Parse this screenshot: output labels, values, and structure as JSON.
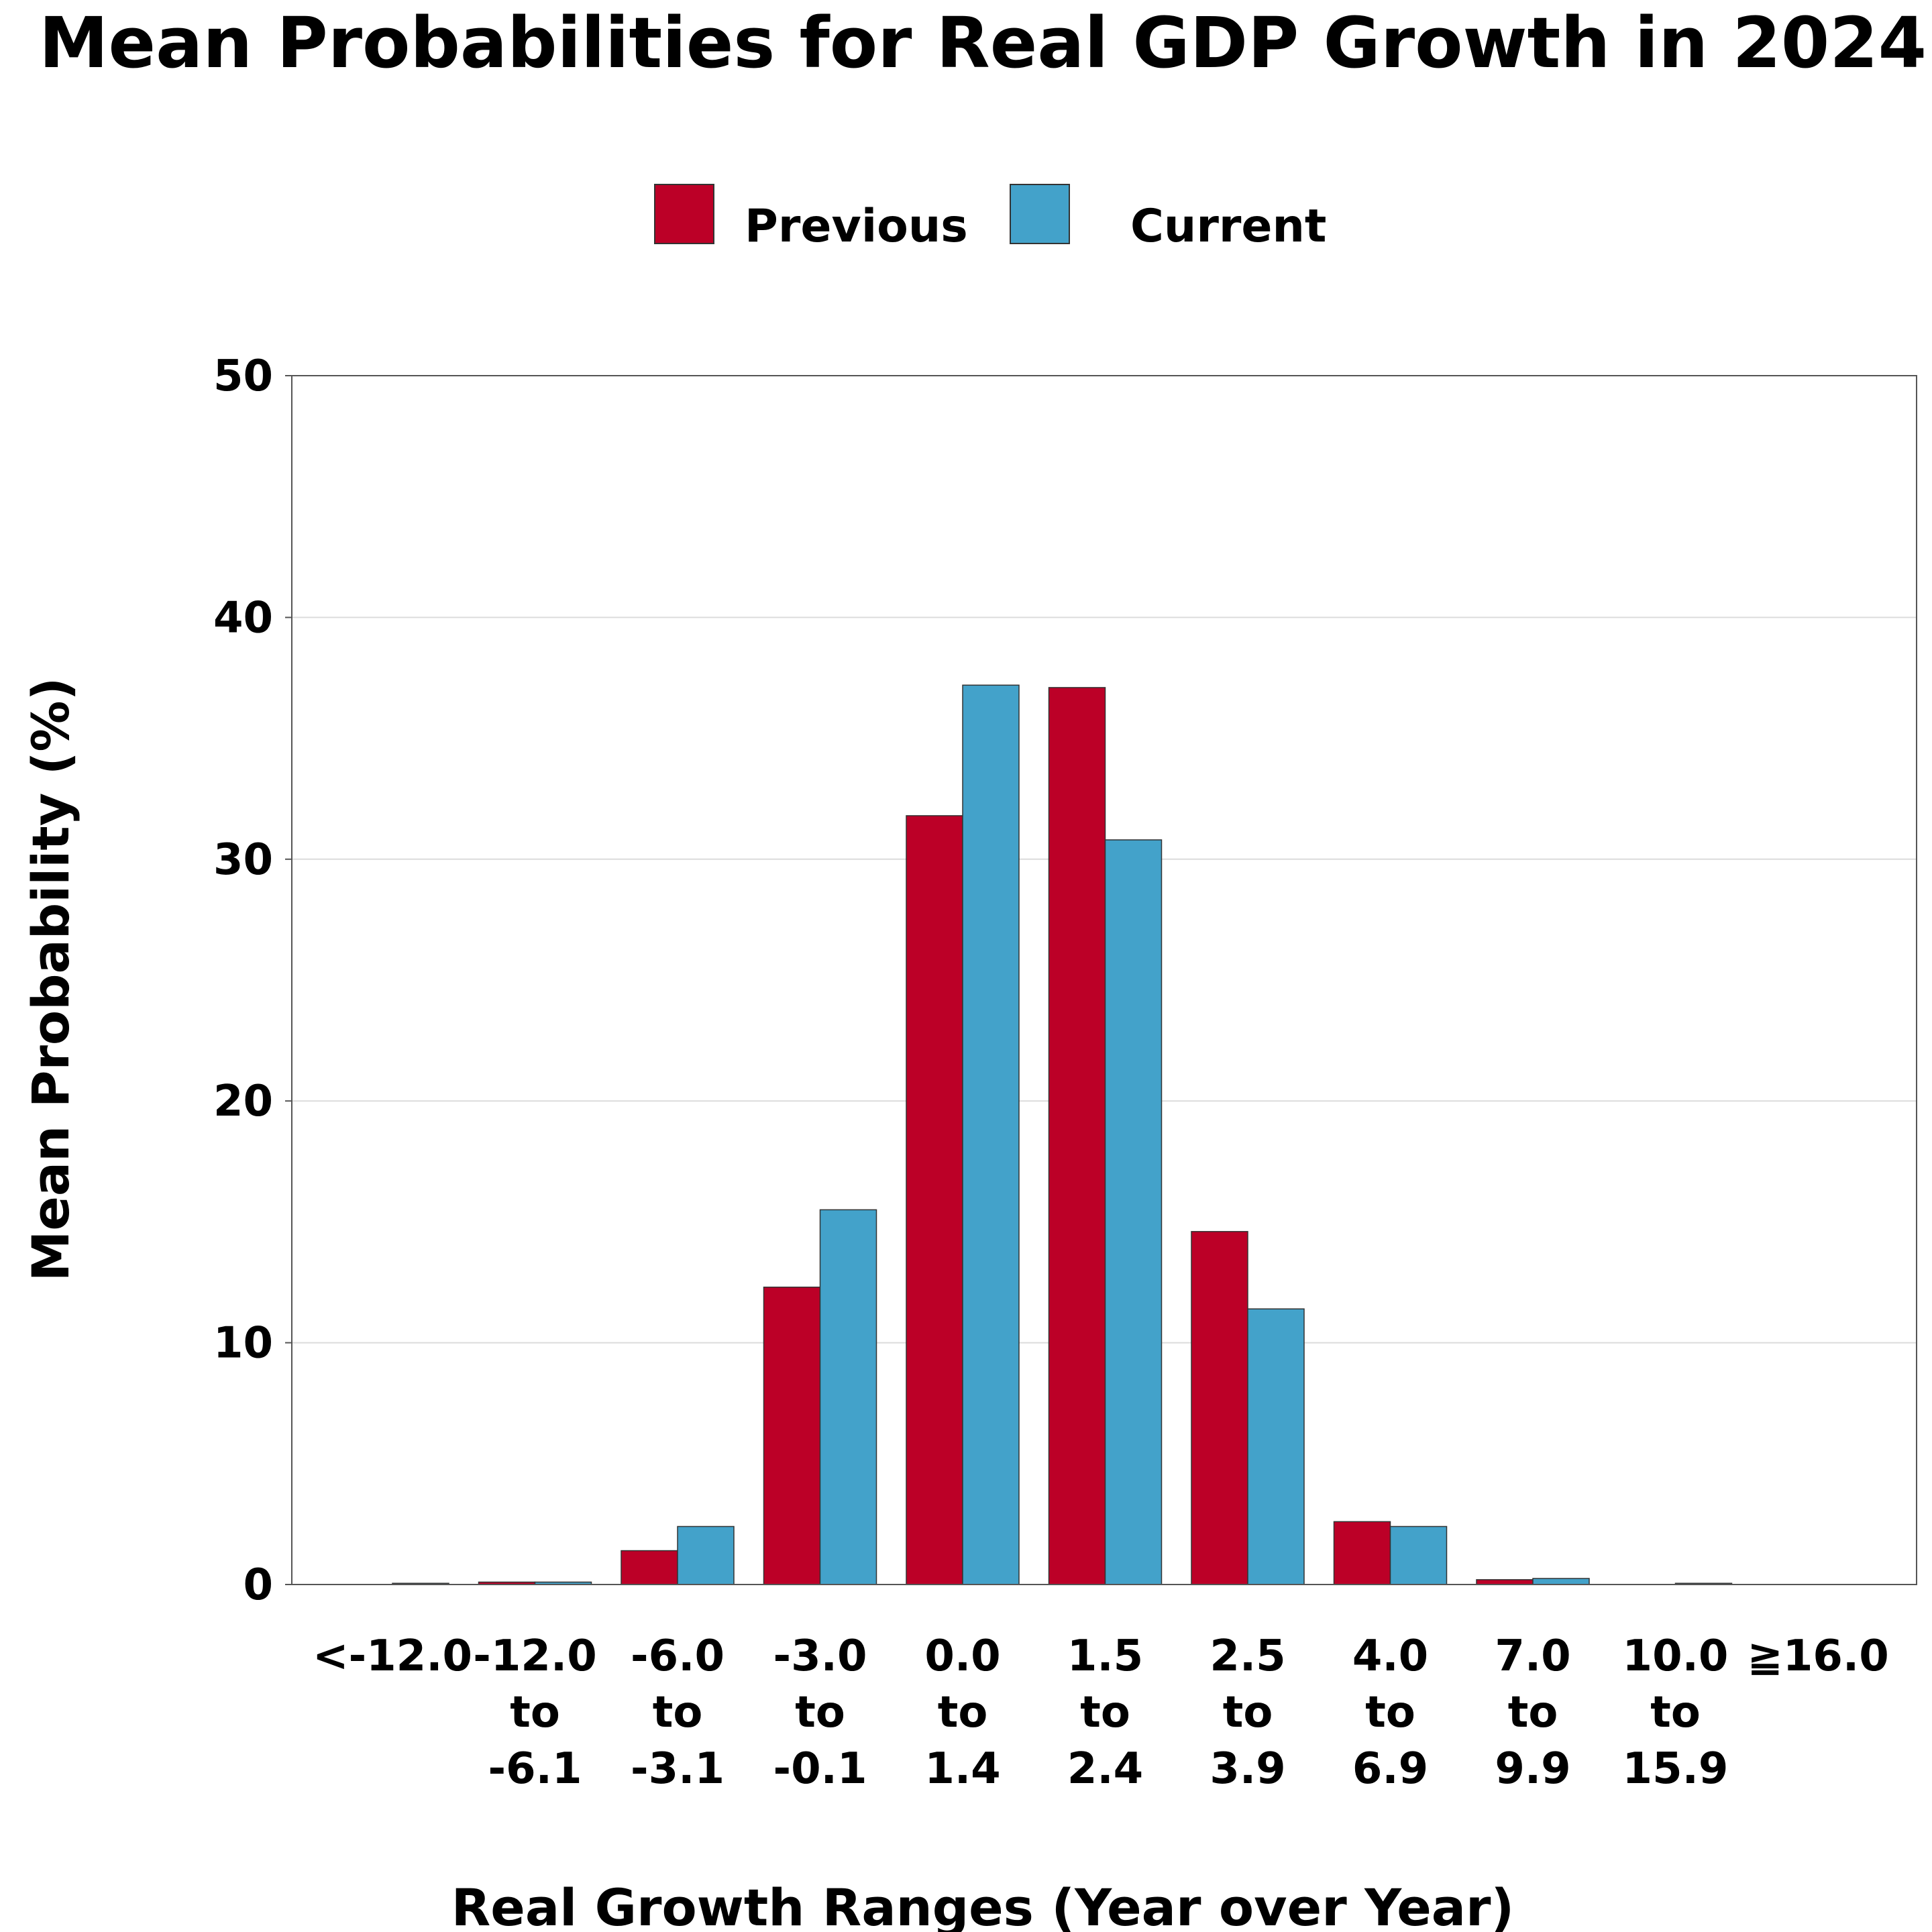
{
  "chart_data": {
    "type": "bar",
    "title": "Mean Probabilities for Real GDP Growth in 2024",
    "xlabel": "Real Growth Ranges (Year over Year)",
    "ylabel": "Mean Probability (%)",
    "ylim": [
      0,
      50
    ],
    "yticks": [
      "0",
      "10",
      "20",
      "30",
      "40",
      "50"
    ],
    "grid": "horizontal",
    "legend_position": "top-center",
    "categories": [
      [
        "<-12.0"
      ],
      [
        "-12.0",
        "to",
        "-6.1"
      ],
      [
        "-6.0",
        "to",
        "-3.1"
      ],
      [
        "-3.0",
        "to",
        "-0.1"
      ],
      [
        "0.0",
        "to",
        "1.4"
      ],
      [
        "1.5",
        "to",
        "2.4"
      ],
      [
        "2.5",
        "to",
        "3.9"
      ],
      [
        "4.0",
        "to",
        "6.9"
      ],
      [
        "7.0",
        "to",
        "9.9"
      ],
      [
        "10.0",
        "to",
        "15.9"
      ],
      [
        "≧16.0"
      ]
    ],
    "series": [
      {
        "name": "Previous",
        "color": "#BC0027",
        "values": [
          0.0,
          0.1,
          1.4,
          12.3,
          31.8,
          37.1,
          14.6,
          2.6,
          0.2,
          0.0,
          0.0
        ]
      },
      {
        "name": "Current",
        "color": "#43A2CA",
        "values": [
          0.05,
          0.1,
          2.4,
          15.5,
          37.2,
          30.8,
          11.4,
          2.4,
          0.25,
          0.05,
          0.0
        ]
      }
    ]
  }
}
